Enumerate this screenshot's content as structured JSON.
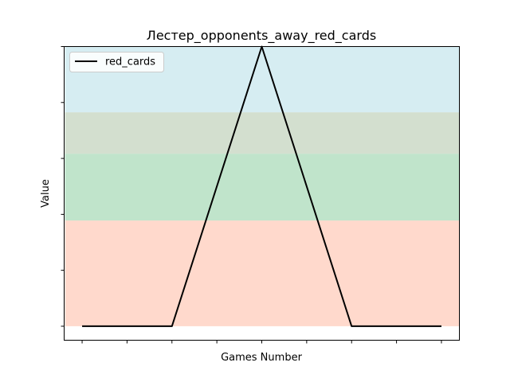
{
  "chart_data": {
    "type": "line",
    "title": "Лестер_opponents_away_red_cards",
    "xlabel": "Games Number",
    "ylabel": "Value",
    "x": [
      0,
      1,
      2,
      3,
      4
    ],
    "series": [
      {
        "name": "red_cards",
        "values": [
          0,
          0,
          1,
          0,
          0
        ],
        "color": "#000000"
      }
    ],
    "xlim": [
      -0.2,
      4.2
    ],
    "ylim": [
      -0.05,
      1.0
    ],
    "bands": [
      {
        "from": 0.0,
        "to": 0.378,
        "color": "#ffd9cc"
      },
      {
        "from": 0.378,
        "to": 0.617,
        "color": "#c0e4cb"
      },
      {
        "from": 0.617,
        "to": 0.765,
        "color": "#d3dfcf"
      },
      {
        "from": 0.765,
        "to": 1.0,
        "color": "#d6edf2"
      }
    ],
    "x_tick_count": 9,
    "y_tick_count": 6,
    "tick_labels_visible": false,
    "legend_position": "top-left",
    "grid": false
  }
}
